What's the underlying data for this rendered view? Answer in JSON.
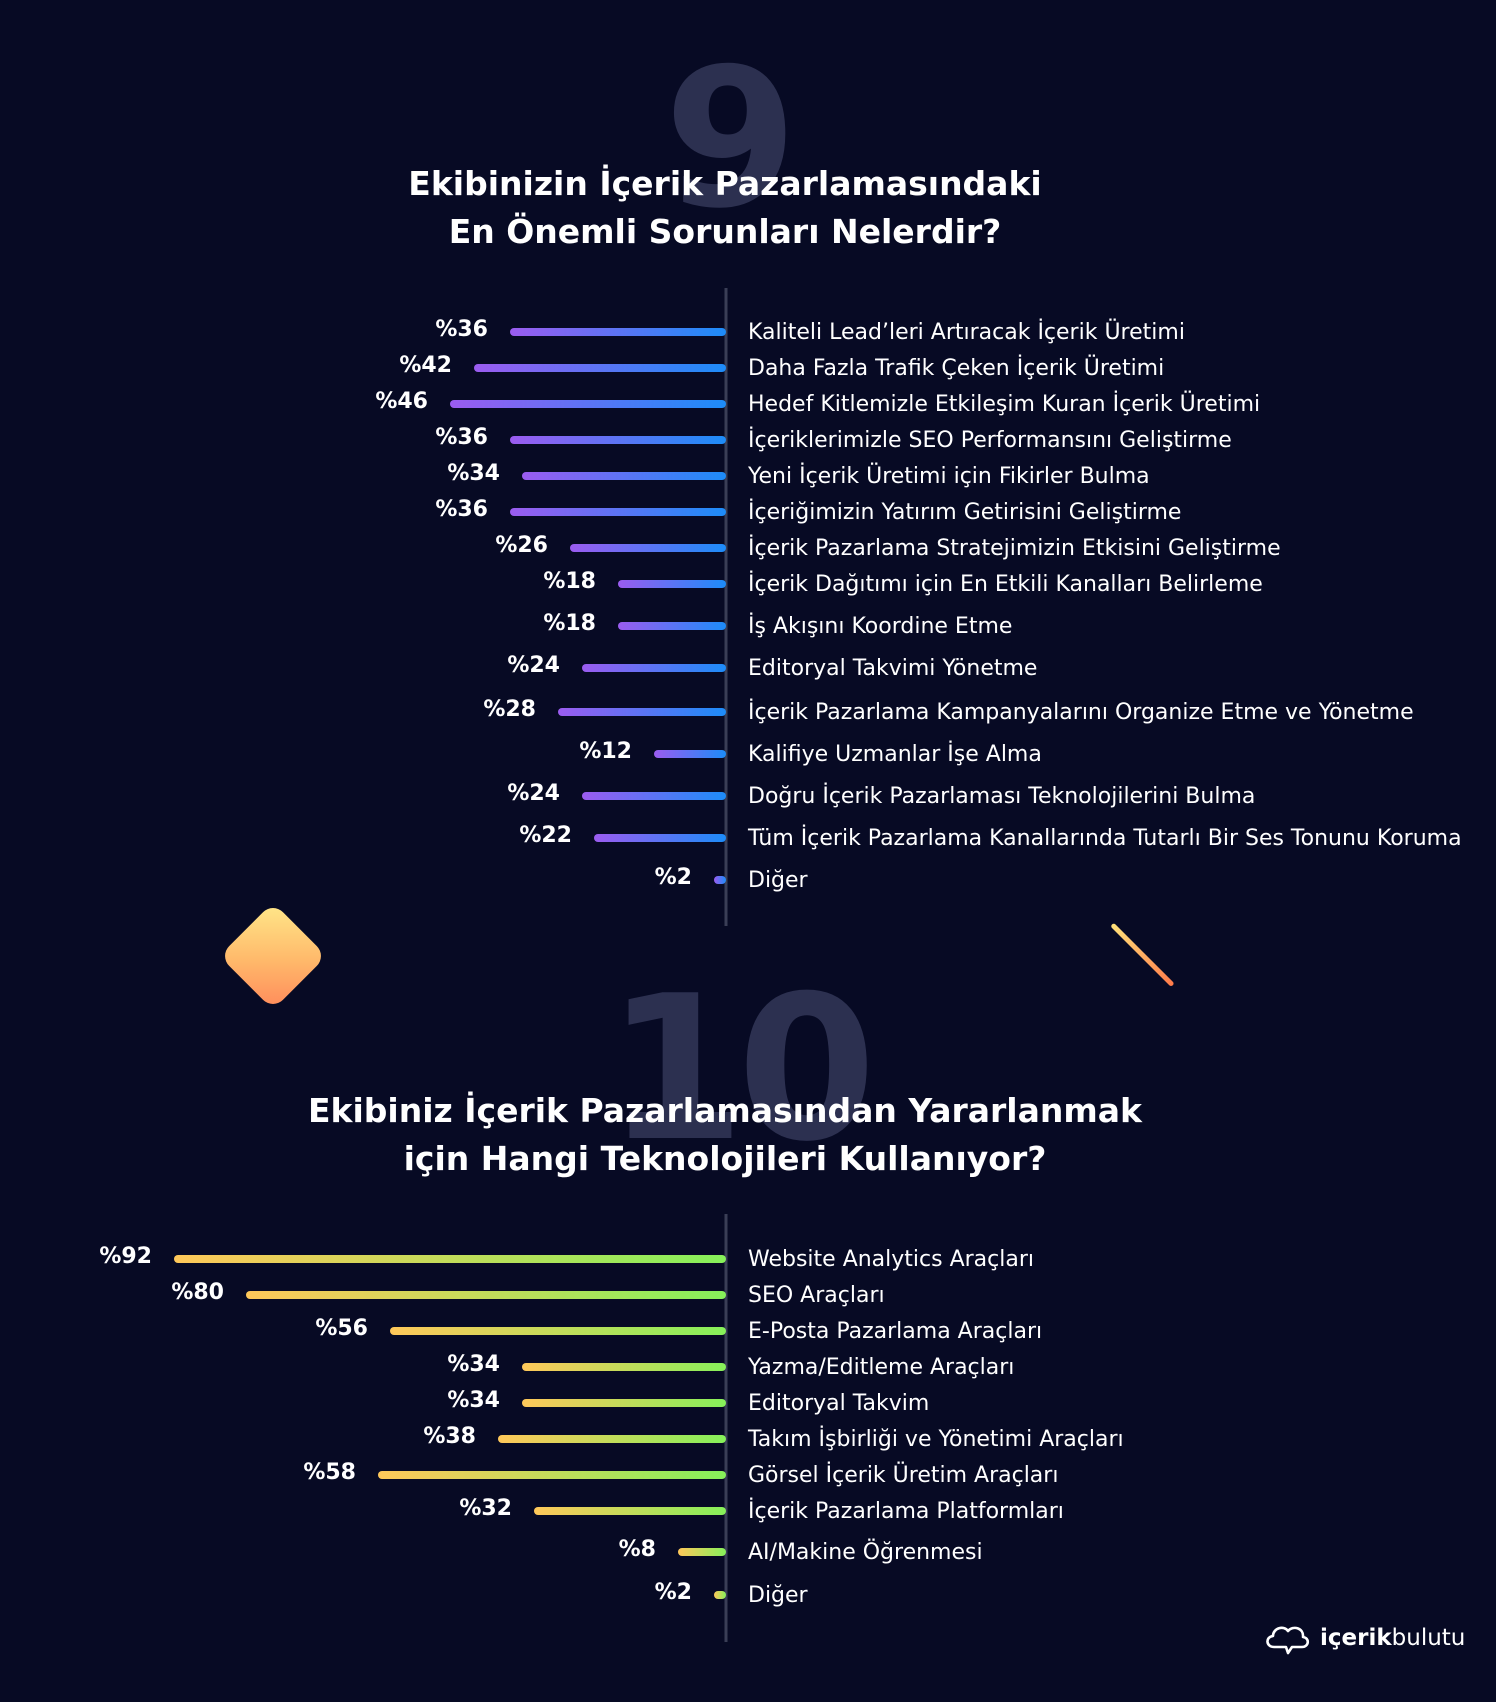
{
  "section1": {
    "number": "9",
    "title_line1": "Ekibinizin İçerik Pazarlamasındaki",
    "title_line2": "En Önemli Sorunları Nelerdir?"
  },
  "section2": {
    "number": "10",
    "title_line1": "Ekibiniz İçerik Pazarlamasından Yararlanmak",
    "title_line2": "için Hangi Teknolojileri Kullanıyor?"
  },
  "logo": {
    "bold": "içerik",
    "regular": "bulutu"
  },
  "colors": {
    "background": "#070a24",
    "chart1_bar_start": "#9b5cf0",
    "chart1_bar_end": "#1d8cf8",
    "chart2_bar_start": "#ffc85a",
    "chart2_bar_end": "#86f05a",
    "axis": "#3a3e56"
  },
  "chart_data": [
    {
      "type": "bar",
      "orientation": "horizontal",
      "value_prefix": "%",
      "categories": [
        "Kaliteli Lead’leri Artıracak İçerik Üretimi",
        "Daha Fazla Trafik Çeken İçerik Üretimi",
        "Hedef Kitlemizle Etkileşim Kuran İçerik Üretimi",
        "İçeriklerimizle SEO Performansını Geliştirme",
        "Yeni İçerik Üretimi için Fikirler Bulma",
        "İçeriğimizin Yatırım Getirisini Geliştirme",
        "İçerik Pazarlama Stratejimizin Etkisini Geliştirme",
        "İçerik Dağıtımı için En Etkili Kanalları Belirleme",
        "İş Akışını Koordine Etme",
        "Editoryal Takvimi Yönetme",
        "İçerik Pazarlama Kampanyalarını Organize Etme ve Yönetme",
        "Kalifiye Uzmanlar İşe Alma",
        "Doğru İçerik Pazarlaması Teknolojilerini Bulma",
        "Tüm İçerik Pazarlama Kanallarında Tutarlı Bir Ses Tonunu Koruma",
        "Diğer"
      ],
      "values": [
        36,
        42,
        46,
        36,
        34,
        36,
        26,
        18,
        18,
        24,
        28,
        12,
        24,
        22,
        2
      ],
      "value_labels": [
        "%36",
        "%42",
        "%46",
        "%36",
        "%34",
        "%36",
        "%26",
        "%18",
        "%18",
        "%24",
        "%28",
        "%12",
        "%24",
        "%22",
        "%2"
      ]
    },
    {
      "type": "bar",
      "orientation": "horizontal",
      "value_prefix": "%",
      "categories": [
        "Website Analytics Araçları",
        "SEO Araçları",
        "E-Posta Pazarlama Araçları",
        "Yazma/Editleme Araçları",
        "Editoryal Takvim",
        "Takım İşbirliği ve Yönetimi Araçları",
        "Görsel İçerik Üretim Araçları",
        "İçerik Pazarlama Platformları",
        "AI/Makine Öğrenmesi",
        "Diğer"
      ],
      "values": [
        92,
        80,
        56,
        34,
        34,
        38,
        58,
        32,
        8,
        2
      ],
      "value_labels": [
        "%92",
        "%80",
        "%56",
        "%34",
        "%34",
        "%38",
        "%58",
        "%32",
        "%8",
        "%2"
      ]
    }
  ]
}
